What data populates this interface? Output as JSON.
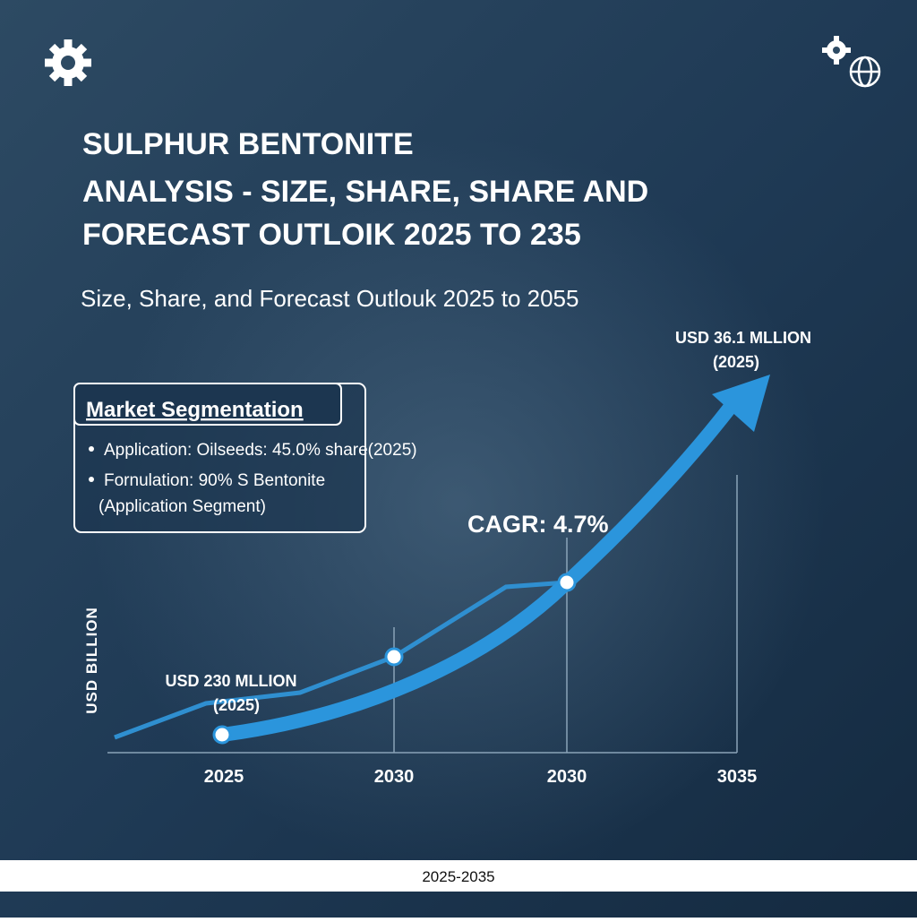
{
  "header": {
    "title_lines": [
      "SULPHUR BENTONITE",
      "ANALYSIS - SIZE, SHARE, SHARE AND",
      "FORECAST OUTLOIK 2025 TO 235"
    ],
    "subtitle": "Size, Share, and Forecast Outlouk 2025 to 2055"
  },
  "segmentation": {
    "title": "Market Segmentation",
    "items": [
      "Application: Oilseeds: 45.0% share(2025)",
      "Fornulation: 90% S Bentonite"
    ],
    "note": "(Application Segment)"
  },
  "graphic": {
    "end_label": [
      "USD 36.1 MLLION",
      "(2025)"
    ],
    "start_label": [
      "USD 230 MLLION",
      "(2025)"
    ],
    "cagr": "CAGR: 4.7%",
    "y_label": "USD BILLION",
    "x_labels": [
      "2025",
      "2030",
      "2030",
      "3035"
    ]
  },
  "footer": {
    "range": "2025-2035"
  }
}
